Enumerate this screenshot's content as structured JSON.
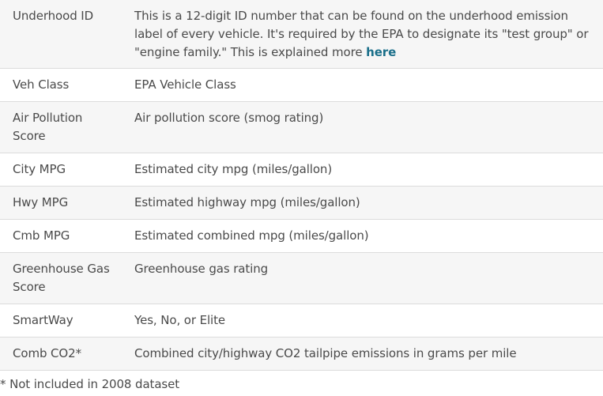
{
  "table": {
    "rows": [
      {
        "term": "Underhood ID",
        "definition": "This is a 12-digit ID number that can be found on the underhood emission label of every vehicle. It's required by the EPA to designate its \"test group\" or \"engine family.\" This is explained more ",
        "link_text": "here"
      },
      {
        "term": "Veh Class",
        "definition": "EPA Vehicle Class"
      },
      {
        "term": "Air Pollution Score",
        "definition": "Air pollution score (smog rating)"
      },
      {
        "term": "City MPG",
        "definition": "Estimated city mpg (miles/gallon)"
      },
      {
        "term": "Hwy MPG",
        "definition": "Estimated highway mpg (miles/gallon)"
      },
      {
        "term": "Cmb MPG",
        "definition": "Estimated combined mpg (miles/gallon)"
      },
      {
        "term": "Greenhouse Gas Score",
        "definition": "Greenhouse gas rating"
      },
      {
        "term": "SmartWay",
        "definition": "Yes, No, or Elite"
      },
      {
        "term": "Comb CO2*",
        "definition": "Combined city/highway CO2 tailpipe emissions in grams per mile"
      }
    ]
  },
  "footnote": "* Not included in 2008 dataset",
  "colors": {
    "text": "#4a4a4a",
    "link": "#1a6f8a",
    "row_shade": "#f6f6f6",
    "border": "#dcdcdc"
  }
}
